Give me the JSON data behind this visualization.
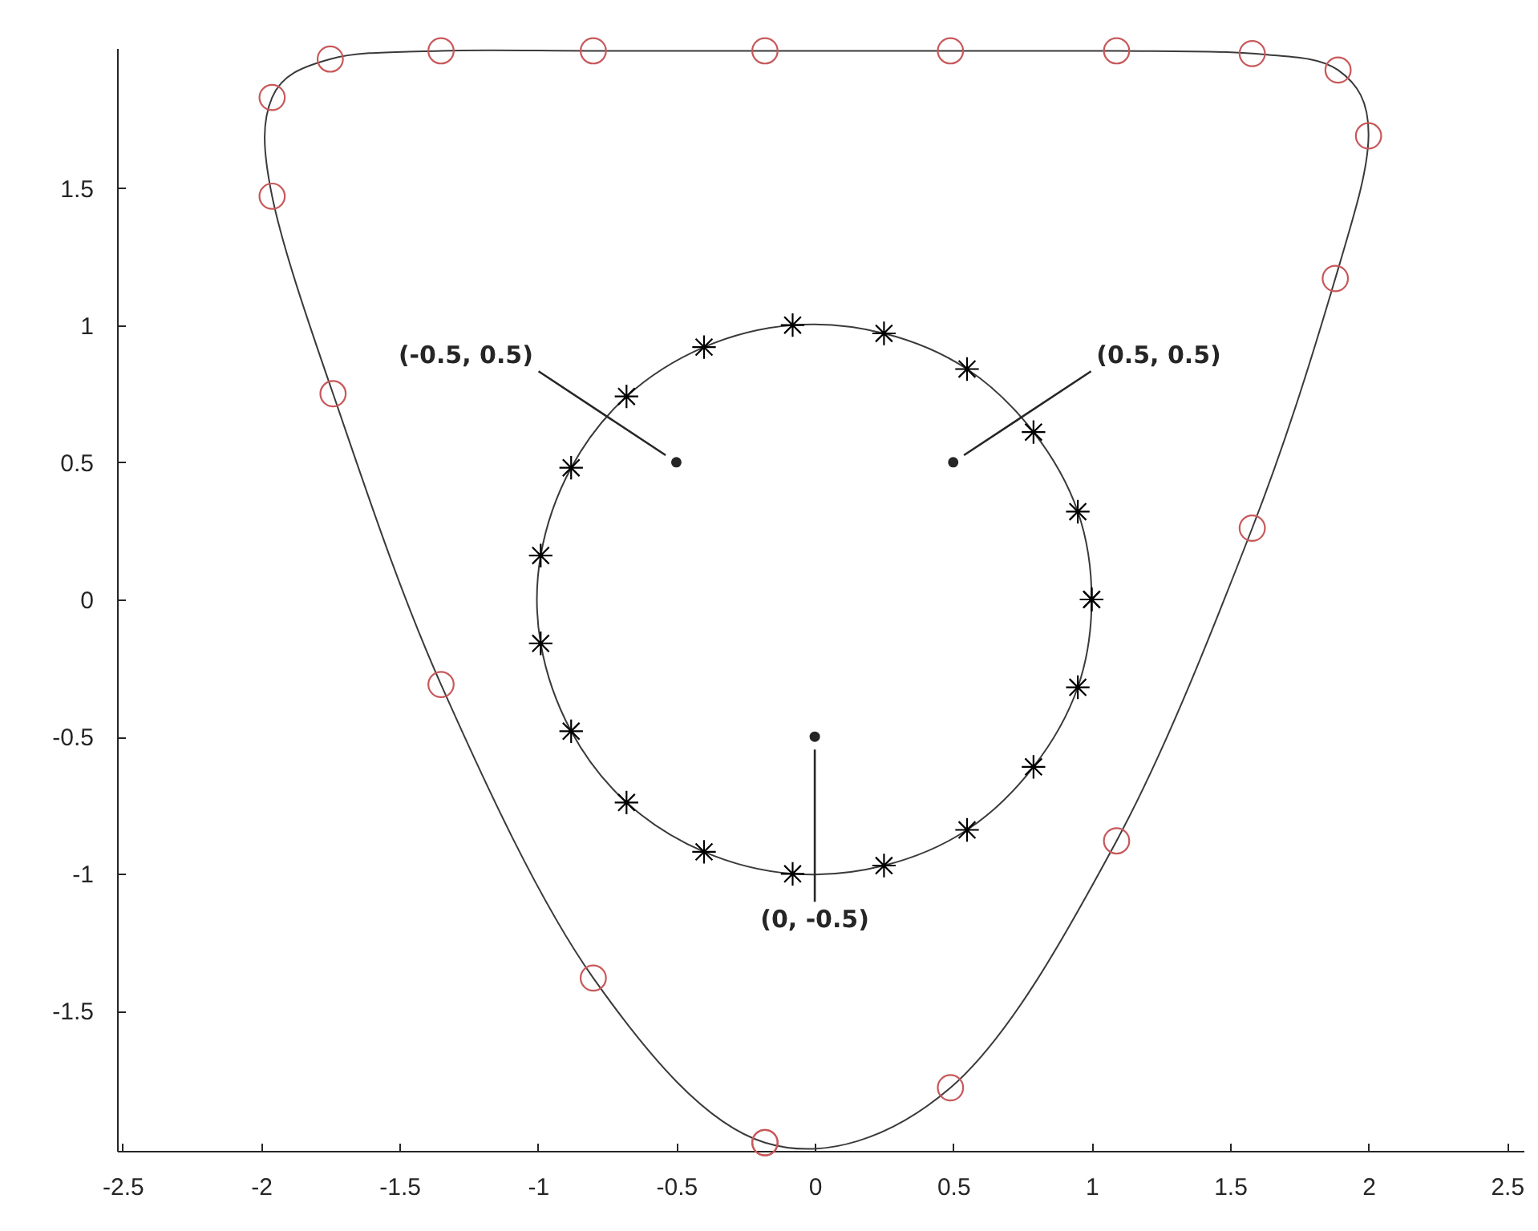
{
  "chart_data": {
    "type": "scatter",
    "xlim": [
      -2.52,
      2.56
    ],
    "xticks": [
      -2.5,
      -2,
      -1.5,
      -1,
      -0.5,
      0,
      0.5,
      1,
      1.5,
      2,
      2.5
    ],
    "ylim": [
      -2.01,
      2.01
    ],
    "yticks": [
      -1.5,
      -1,
      -0.5,
      0,
      0.5,
      1,
      1.5
    ],
    "series": [
      {
        "marker": "circle",
        "line_style": "solid",
        "color": "#c8585a",
        "x": [
          -0.18,
          0.49,
          1.09,
          1.58,
          1.88,
          2.0,
          1.89,
          1.58,
          1.09,
          0.49,
          -0.18,
          -0.8,
          -1.35,
          -1.75,
          -1.96,
          -1.96,
          -1.74,
          -1.35,
          -0.8,
          -0.18
        ],
        "values": [
          -1.98,
          -1.78,
          -0.88,
          0.26,
          1.17,
          1.69,
          1.93,
          1.99,
          2.0,
          2.0,
          2.0,
          2.0,
          2.0,
          1.97,
          1.83,
          1.47,
          0.75,
          -0.31,
          -1.38,
          -1.98
        ]
      },
      {
        "marker": "cross",
        "line_style": "solid",
        "color": "#000000",
        "x": [
          1,
          0.95,
          0.79,
          0.55,
          0.25,
          -0.08,
          -0.4,
          -0.68,
          -0.88,
          -0.99,
          -0.99,
          -0.88,
          -0.68,
          -0.4,
          -0.08,
          0.25,
          0.55,
          0.79,
          0.95,
          1
        ],
        "values": [
          0,
          0.32,
          0.61,
          0.84,
          0.97,
          1,
          0.92,
          0.74,
          0.48,
          0.16,
          -0.16,
          -0.48,
          -0.74,
          -0.92,
          -1,
          -0.97,
          -0.84,
          -0.61,
          -0.32,
          0
        ]
      }
    ],
    "annotations": [
      {
        "text": "(-0.5, 0.5)",
        "x": -0.5,
        "y": 0.5
      },
      {
        "text": "(0.5, 0.5)",
        "x": 0.5,
        "y": 0.5
      },
      {
        "text": "(0, -0.5)",
        "x": 0,
        "y": -0.5
      }
    ]
  }
}
